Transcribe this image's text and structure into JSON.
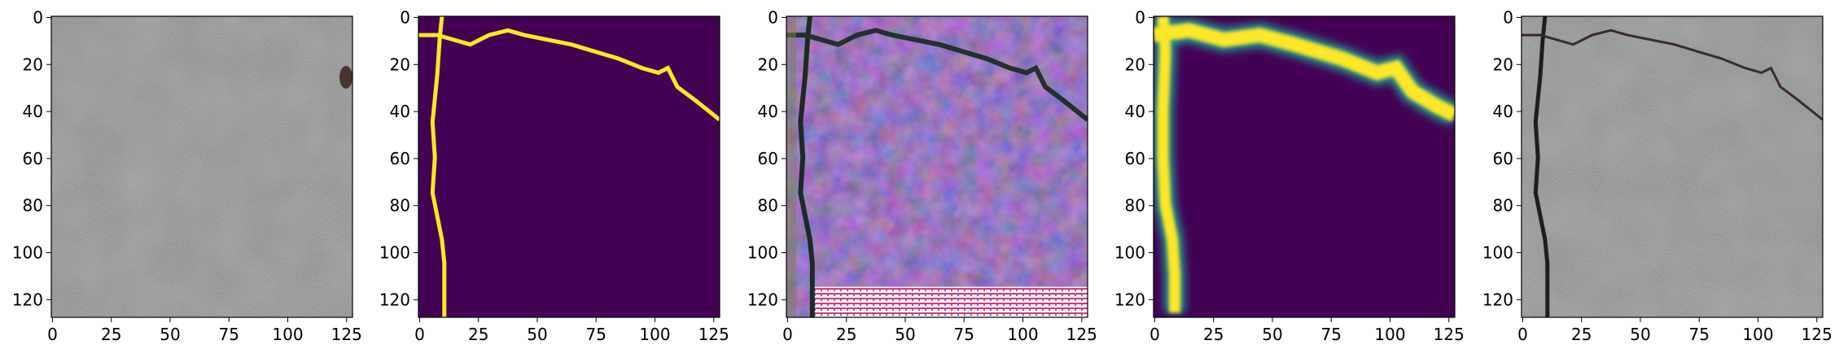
{
  "figure": {
    "panels": [
      {
        "name": "input-photo",
        "kind": "photo"
      },
      {
        "name": "ground-truth-mask",
        "kind": "mask"
      },
      {
        "name": "generated-texture",
        "kind": "texture"
      },
      {
        "name": "predicted-mask",
        "kind": "mask-soft"
      },
      {
        "name": "overlay-photo",
        "kind": "photo-crack"
      }
    ],
    "axes": {
      "x_ticks": [
        "0",
        "25",
        "50",
        "75",
        "100",
        "125"
      ],
      "y_ticks": [
        "0",
        "20",
        "40",
        "60",
        "80",
        "100",
        "120"
      ],
      "x_tick_values": [
        0,
        25,
        50,
        75,
        100,
        125
      ],
      "y_tick_values": [
        0,
        20,
        40,
        60,
        80,
        100,
        120
      ],
      "range": [
        0,
        128
      ]
    },
    "colors": {
      "mask_background": "#440154",
      "mask_crack": "#fde725",
      "concrete_gray": "#8a8b8b",
      "texture_purple": "#5b3f92"
    }
  }
}
